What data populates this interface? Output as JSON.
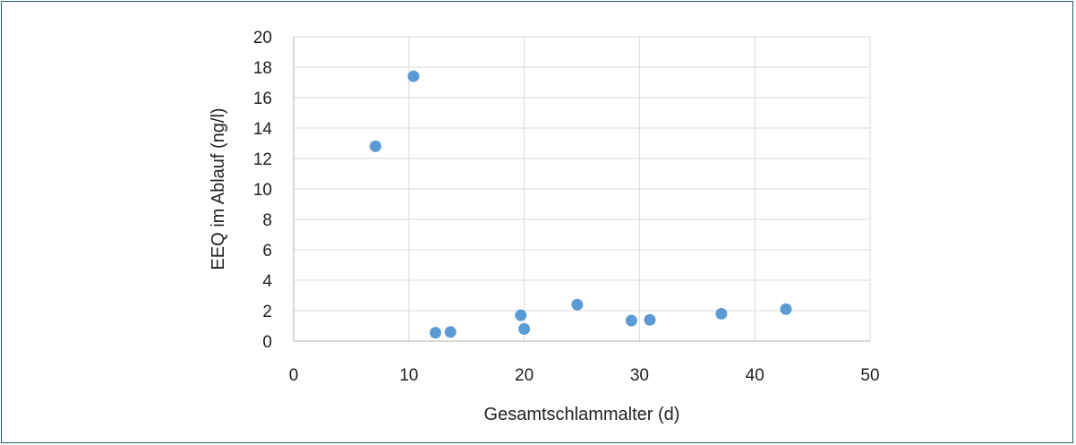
{
  "chart_data": {
    "type": "scatter",
    "title": "",
    "xlabel": "Gesamtschlammalter (d)",
    "ylabel": "EEQ im Ablauf (ng/l)",
    "xlim": [
      0,
      50
    ],
    "ylim": [
      0,
      20
    ],
    "x_ticks": [
      0,
      10,
      20,
      30,
      40,
      50
    ],
    "y_ticks": [
      0,
      2,
      4,
      6,
      8,
      10,
      12,
      14,
      16,
      18,
      20
    ],
    "grid": true,
    "legend": "none",
    "colors": {
      "marker": "#5b9bd5",
      "grid": "#d9d9d9",
      "axis": "#bfbfbf",
      "frame": "#1f5b63"
    },
    "series": [
      {
        "points": [
          {
            "x": 7.1,
            "y": 12.8
          },
          {
            "x": 10.4,
            "y": 17.4
          },
          {
            "x": 12.3,
            "y": 0.55
          },
          {
            "x": 13.6,
            "y": 0.6
          },
          {
            "x": 19.7,
            "y": 1.7
          },
          {
            "x": 20.0,
            "y": 0.8
          },
          {
            "x": 24.6,
            "y": 2.4
          },
          {
            "x": 29.3,
            "y": 1.35
          },
          {
            "x": 30.9,
            "y": 1.4
          },
          {
            "x": 37.1,
            "y": 1.8
          },
          {
            "x": 42.7,
            "y": 2.1
          }
        ]
      }
    ]
  }
}
